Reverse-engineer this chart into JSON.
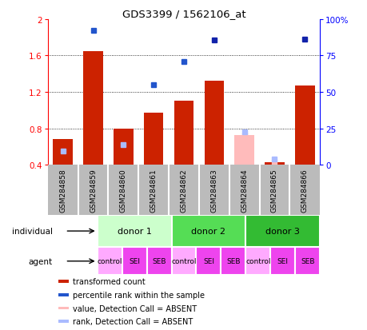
{
  "title": "GDS3399 / 1562106_at",
  "samples": [
    "GSM284858",
    "GSM284859",
    "GSM284860",
    "GSM284861",
    "GSM284862",
    "GSM284863",
    "GSM284864",
    "GSM284865",
    "GSM284866"
  ],
  "red_bars": [
    0.68,
    1.65,
    0.8,
    0.97,
    1.1,
    1.32,
    null,
    0.43,
    1.27
  ],
  "pink_bars": [
    null,
    null,
    null,
    null,
    null,
    null,
    0.73,
    null,
    null
  ],
  "blue_dots": [
    null,
    1.88,
    null,
    1.28,
    1.53,
    null,
    null,
    null,
    null
  ],
  "dark_blue_dots": [
    null,
    null,
    null,
    null,
    null,
    1.77,
    null,
    null,
    1.78
  ],
  "light_blue_absent": [
    null,
    null,
    null,
    null,
    null,
    null,
    0.76,
    0.46,
    null
  ],
  "pink_absent_marker": [
    null,
    null,
    null,
    null,
    null,
    null,
    0.73,
    0.43,
    null
  ],
  "red_small_markers": [
    0.52,
    null,
    0.6,
    null,
    null,
    null,
    null,
    null,
    null
  ],
  "blue_small_markers": [
    0.55,
    null,
    0.62,
    null,
    null,
    null,
    null,
    null,
    null
  ],
  "ylim_left": [
    0.4,
    2.0
  ],
  "ylim_right": [
    0,
    100
  ],
  "yticks_left": [
    0.4,
    0.8,
    1.2,
    1.6,
    2.0
  ],
  "ytick_labels_left": [
    "0.4",
    "0.8",
    "1.2",
    "1.6",
    "2"
  ],
  "yticks_right": [
    0,
    25,
    50,
    75,
    100
  ],
  "ytick_labels_right": [
    "0",
    "25",
    "50",
    "75",
    "100%"
  ],
  "donor_groups": [
    {
      "label": "donor 1",
      "start": 0,
      "end": 3,
      "color": "#ccffcc"
    },
    {
      "label": "donor 2",
      "start": 3,
      "end": 6,
      "color": "#55dd55"
    },
    {
      "label": "donor 3",
      "start": 6,
      "end": 9,
      "color": "#33bb33"
    }
  ],
  "agent_labels": [
    "control",
    "SEI",
    "SEB",
    "control",
    "SEI",
    "SEB",
    "control",
    "SEI",
    "SEB"
  ],
  "agent_colors": [
    "#ffaaff",
    "#ee44ee",
    "#ee44ee",
    "#ffaaff",
    "#ee44ee",
    "#ee44ee",
    "#ffaaff",
    "#ee44ee",
    "#ee44ee"
  ],
  "bar_color_red": "#cc2200",
  "bar_color_pink": "#ffbbbb",
  "dot_color_blue": "#2255cc",
  "dot_color_darkblue": "#1122aa",
  "bar_base": 0.4,
  "bg_color": "#bbbbbb",
  "legend_items": [
    {
      "label": "transformed count",
      "color": "#cc2200"
    },
    {
      "label": "percentile rank within the sample",
      "color": "#2255cc"
    },
    {
      "label": "value, Detection Call = ABSENT",
      "color": "#ffbbbb"
    },
    {
      "label": "rank, Detection Call = ABSENT",
      "color": "#aabbff"
    }
  ]
}
